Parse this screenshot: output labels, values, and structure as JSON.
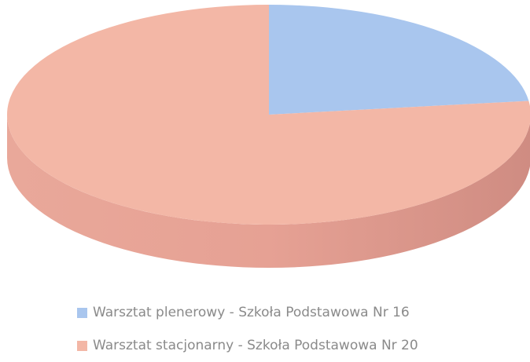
{
  "chart_data": {
    "type": "pie",
    "title": "",
    "style": "3d",
    "labels": [
      "Warsztat plenerowy - Szkoła Podstawowa Nr 16",
      "Warsztat stacjonarny - Szkoła Podstawowa Nr 20"
    ],
    "values": [
      23,
      77
    ],
    "colors": [
      "#a9c6ee",
      "#f3b7a6"
    ],
    "legend_position": "bottom",
    "data_labels_shown": false
  }
}
